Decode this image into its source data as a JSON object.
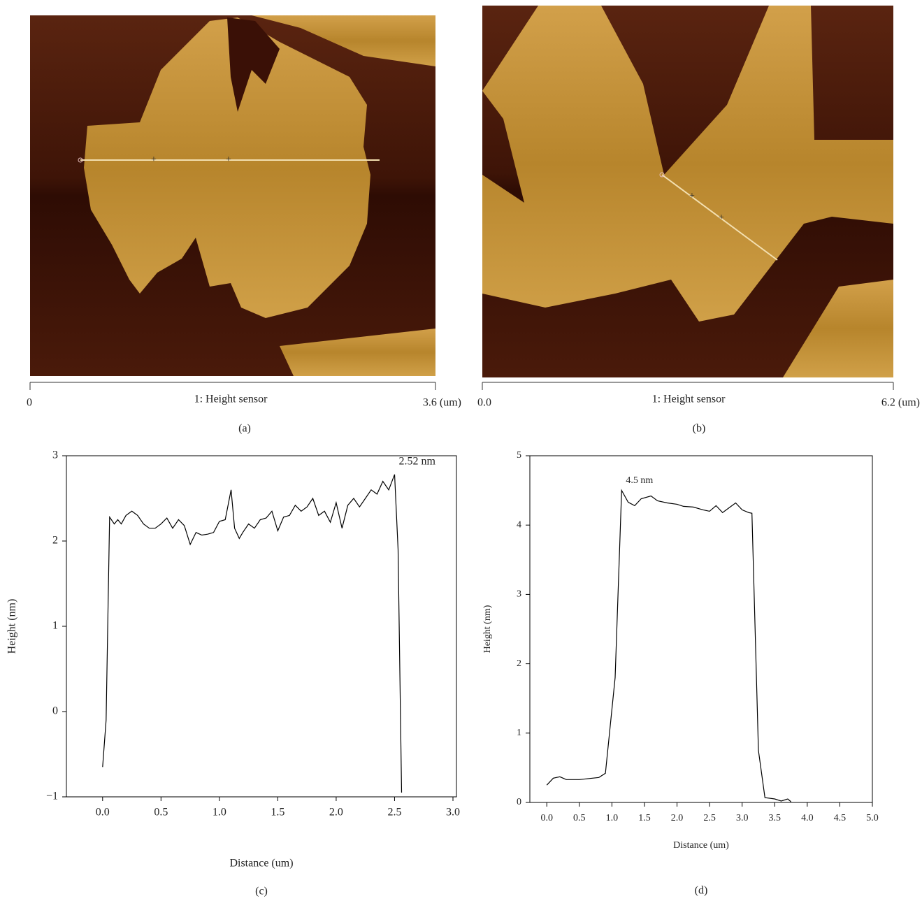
{
  "panels": [
    {
      "scale_start": "0",
      "scale_title": "1: Height sensor",
      "scale_end": "3.6 (um)",
      "caption": "(a)"
    },
    {
      "scale_start": "0.0",
      "scale_title": "1: Height sensor",
      "scale_end": "6.2 (um)",
      "caption": "(b)"
    }
  ],
  "chart_data": [
    {
      "type": "line",
      "caption": "(c)",
      "x_label": "Distance (um)",
      "y_label": "Height (nm)",
      "annotation": "2.52 nm",
      "color": "#000000",
      "xlim": [
        -0.31,
        3.03
      ],
      "ylim": [
        -1,
        3
      ],
      "xticks": [
        {
          "value": 0,
          "label": "0.0"
        },
        0.5,
        {
          "value": 1,
          "label": "1.0"
        },
        1.5,
        {
          "value": 2,
          "label": "2.0"
        },
        2.5,
        {
          "value": 3,
          "label": "3.0"
        }
      ],
      "yticks": [
        {
          "value": -1,
          "label": "−1"
        },
        0,
        1,
        2,
        3
      ],
      "x": [
        0,
        0.03,
        0.06,
        0.1,
        0.13,
        0.16,
        0.2,
        0.25,
        0.3,
        0.35,
        0.4,
        0.45,
        0.5,
        0.55,
        0.6,
        0.65,
        0.7,
        0.75,
        0.8,
        0.85,
        0.9,
        0.95,
        1.0,
        1.05,
        1.1,
        1.13,
        1.17,
        1.2,
        1.25,
        1.3,
        1.35,
        1.4,
        1.45,
        1.5,
        1.55,
        1.6,
        1.65,
        1.7,
        1.75,
        1.8,
        1.85,
        1.9,
        1.95,
        2.0,
        2.05,
        2.1,
        2.15,
        2.2,
        2.25,
        2.3,
        2.35,
        2.4,
        2.45,
        2.5,
        2.53,
        2.56
      ],
      "values": [
        -0.65,
        -0.1,
        2.28,
        2.2,
        2.25,
        2.2,
        2.3,
        2.35,
        2.3,
        2.2,
        2.15,
        2.15,
        2.2,
        2.27,
        2.15,
        2.25,
        2.18,
        1.96,
        2.1,
        2.07,
        2.08,
        2.1,
        2.23,
        2.25,
        2.6,
        2.15,
        2.03,
        2.1,
        2.2,
        2.15,
        2.25,
        2.27,
        2.35,
        2.12,
        2.28,
        2.3,
        2.42,
        2.35,
        2.4,
        2.5,
        2.3,
        2.35,
        2.22,
        2.45,
        2.15,
        2.42,
        2.5,
        2.4,
        2.5,
        2.6,
        2.55,
        2.7,
        2.6,
        2.78,
        1.9,
        -0.95
      ]
    },
    {
      "type": "line",
      "caption": "(d)",
      "x_label": "Distance (um)",
      "y_label": "Height (nm)",
      "annotation": "4.5 nm",
      "color": "#000000",
      "xlim": [
        -0.26,
        5
      ],
      "ylim": [
        0,
        5
      ],
      "xticks": [
        {
          "value": 0,
          "label": "0.0"
        },
        0.5,
        {
          "value": 1,
          "label": "1.0"
        },
        1.5,
        {
          "value": 2,
          "label": "2.0"
        },
        2.5,
        {
          "value": 3,
          "label": "3.0"
        },
        3.5,
        {
          "value": 4,
          "label": "4.0"
        },
        4.5,
        {
          "value": 5,
          "label": "5.0"
        }
      ],
      "yticks": [
        0,
        1,
        2,
        3,
        4,
        5
      ],
      "x": [
        0,
        0.1,
        0.2,
        0.3,
        0.4,
        0.5,
        0.6,
        0.8,
        0.9,
        1.05,
        1.15,
        1.25,
        1.35,
        1.45,
        1.6,
        1.7,
        1.85,
        2.0,
        2.1,
        2.25,
        2.4,
        2.5,
        2.6,
        2.7,
        2.8,
        2.9,
        3.0,
        3.1,
        3.15,
        3.25,
        3.35,
        3.5,
        3.6,
        3.7,
        3.75
      ],
      "values": [
        0.25,
        0.35,
        0.37,
        0.33,
        0.33,
        0.33,
        0.34,
        0.36,
        0.42,
        1.8,
        4.5,
        4.33,
        4.28,
        4.38,
        4.42,
        4.35,
        4.32,
        4.3,
        4.27,
        4.26,
        4.22,
        4.2,
        4.28,
        4.18,
        4.25,
        4.32,
        4.22,
        4.18,
        4.17,
        0.75,
        0.07,
        0.05,
        0.02,
        0.05,
        0.01
      ]
    }
  ]
}
